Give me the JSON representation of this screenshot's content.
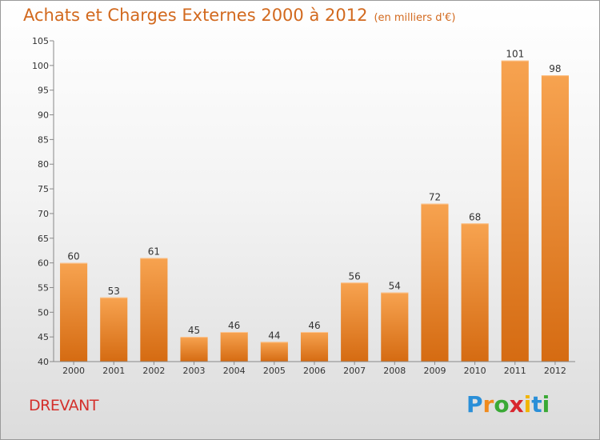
{
  "header": {
    "title": "Achats et Charges Externes 2000 à 2012",
    "subtitle": "(en milliers d'€)"
  },
  "footer": {
    "commune": "DREVANT",
    "logo": {
      "letters": [
        "P",
        "r",
        "o",
        "x",
        "i",
        "t",
        "i"
      ],
      "colors": [
        "#2a8fd8",
        "#f08a1c",
        "#3aa935",
        "#d8262e",
        "#f2b500",
        "#2a8fd8",
        "#3aa935"
      ]
    }
  },
  "colors": {
    "bar_top": "#f7a350",
    "bar_bottom": "#d56b12",
    "title": "#d2691e",
    "commune": "#d4302c"
  },
  "chart_data": {
    "type": "bar",
    "title": "Achats et Charges Externes 2000 à 2012",
    "subtitle": "(en milliers d'€)",
    "categories": [
      "2000",
      "2001",
      "2002",
      "2003",
      "2004",
      "2005",
      "2006",
      "2007",
      "2008",
      "2009",
      "2010",
      "2011",
      "2012"
    ],
    "values": [
      60,
      53,
      61,
      45,
      46,
      44,
      46,
      56,
      54,
      72,
      68,
      101,
      98
    ],
    "ylim": [
      40,
      105
    ],
    "yticks": [
      40,
      45,
      50,
      55,
      60,
      65,
      70,
      75,
      80,
      85,
      90,
      95,
      100,
      105
    ],
    "grid": false,
    "data_labels": true
  }
}
